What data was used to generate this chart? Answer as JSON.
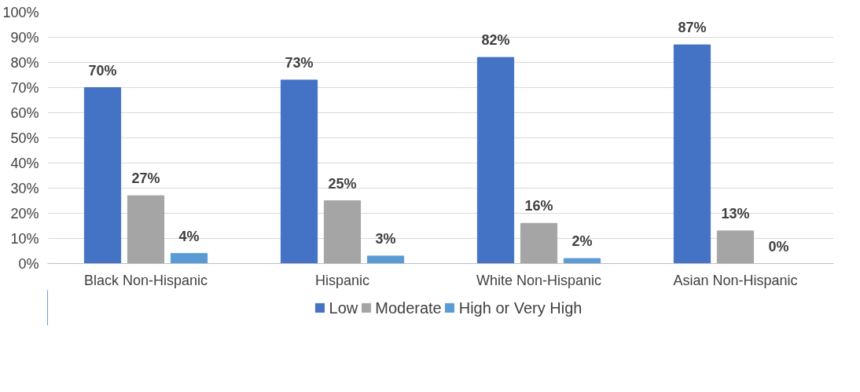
{
  "chart_data": {
    "type": "bar",
    "categories": [
      "Black Non-Hispanic",
      "Hispanic",
      "White Non-Hispanic",
      "Asian Non-Hispanic"
    ],
    "series": [
      {
        "name": "Low",
        "color": "#4472c4",
        "values": [
          70,
          73,
          82,
          87
        ],
        "value_labels": [
          "70%",
          "73%",
          "82%",
          "87%"
        ]
      },
      {
        "name": "Moderate",
        "color": "#a5a5a5",
        "values": [
          27,
          25,
          16,
          13
        ],
        "value_labels": [
          "27%",
          "25%",
          "16%",
          "13%"
        ]
      },
      {
        "name": "High or Very High",
        "color": "#5b9bd5",
        "values": [
          4,
          3,
          2,
          0
        ],
        "value_labels": [
          "4%",
          "3%",
          "2%",
          "0%"
        ]
      }
    ],
    "ylim": [
      0,
      100
    ],
    "yticks": [
      {
        "value": 0,
        "label": "0%"
      },
      {
        "value": 10,
        "label": "10%"
      },
      {
        "value": 20,
        "label": "20%"
      },
      {
        "value": 30,
        "label": "30%"
      },
      {
        "value": 40,
        "label": "40%"
      },
      {
        "value": 50,
        "label": "50%"
      },
      {
        "value": 60,
        "label": "60%"
      },
      {
        "value": 70,
        "label": "70%"
      },
      {
        "value": 80,
        "label": "80%"
      },
      {
        "value": 90,
        "label": "90%"
      },
      {
        "value": 100,
        "label": "100%"
      }
    ],
    "grid": "y",
    "legend": "bottom"
  }
}
